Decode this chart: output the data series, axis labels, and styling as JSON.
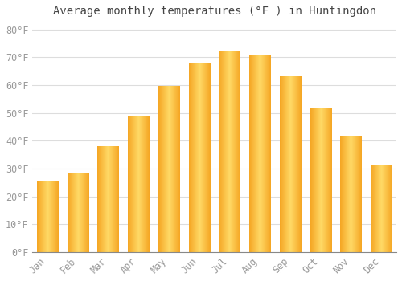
{
  "title": "Average monthly temperatures (°F ) in Huntingdon",
  "months": [
    "Jan",
    "Feb",
    "Mar",
    "Apr",
    "May",
    "Jun",
    "Jul",
    "Aug",
    "Sep",
    "Oct",
    "Nov",
    "Dec"
  ],
  "temperatures": [
    25.5,
    28,
    38,
    49,
    59.5,
    68,
    72,
    70.5,
    63,
    51.5,
    41.5,
    31
  ],
  "bar_color_dark": "#F5A623",
  "bar_color_light": "#FFD966",
  "background_color": "#FFFFFF",
  "grid_color": "#DDDDDD",
  "text_color": "#999999",
  "ylim": [
    0,
    83
  ],
  "yticks": [
    0,
    10,
    20,
    30,
    40,
    50,
    60,
    70,
    80
  ],
  "ytick_labels": [
    "0°F",
    "10°F",
    "20°F",
    "30°F",
    "40°F",
    "50°F",
    "60°F",
    "70°F",
    "80°F"
  ],
  "title_fontsize": 10,
  "tick_fontsize": 8.5,
  "font_family": "monospace",
  "bar_width": 0.7,
  "figsize": [
    5.0,
    3.5
  ],
  "dpi": 100
}
